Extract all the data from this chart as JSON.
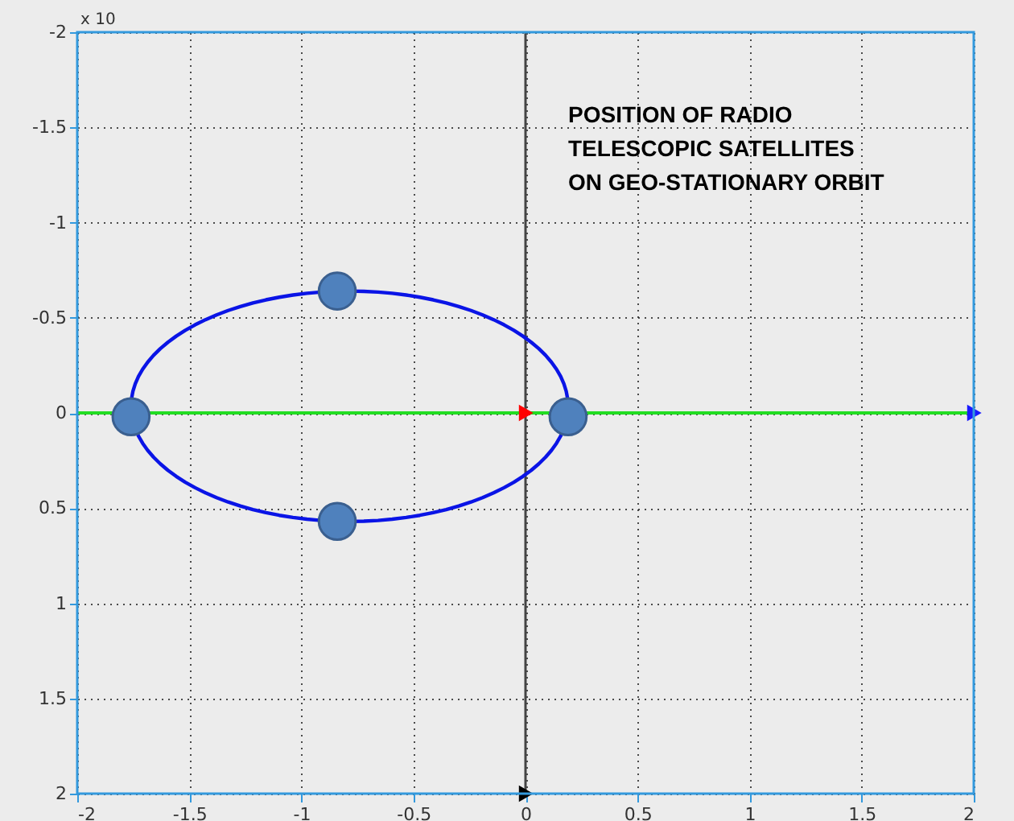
{
  "chart_data": {
    "type": "scatter",
    "annotations": [
      "x 10",
      "POSITION OF RADIO\n TELESCOPIC SATELLITES\nON GEO-STATIONARY ORBIT"
    ],
    "xlim": [
      -2,
      2
    ],
    "xticks": [
      -2,
      -1.5,
      -1,
      -0.5,
      0,
      0.5,
      1,
      1.5,
      2
    ],
    "ylim": [
      2,
      -2
    ],
    "yticks": [
      -2,
      -1.5,
      -1,
      -0.5,
      0,
      0.5,
      1,
      1.5,
      2
    ],
    "grid": true,
    "ref_lines": [
      {
        "axis": "y",
        "value": 0,
        "color": "#22dd22"
      },
      {
        "axis": "x",
        "value": 0,
        "color": "#444444"
      }
    ],
    "series": [
      {
        "color": "#4f81bd",
        "marker": "circle",
        "x": [
          -1.76,
          0.19,
          -0.84,
          -0.84
        ],
        "values": [
          0.02,
          0.02,
          -0.64,
          0.57
        ]
      },
      {
        "color": "#ff0000",
        "marker": "triangle",
        "x": [
          0
        ],
        "values": [
          0
        ]
      },
      {
        "color": "#1a1aff",
        "marker": "triangle",
        "x": [
          2
        ],
        "values": [
          0
        ]
      },
      {
        "color": "#000000",
        "marker": "triangle",
        "x": [
          0
        ],
        "values": [
          2
        ]
      }
    ]
  }
}
